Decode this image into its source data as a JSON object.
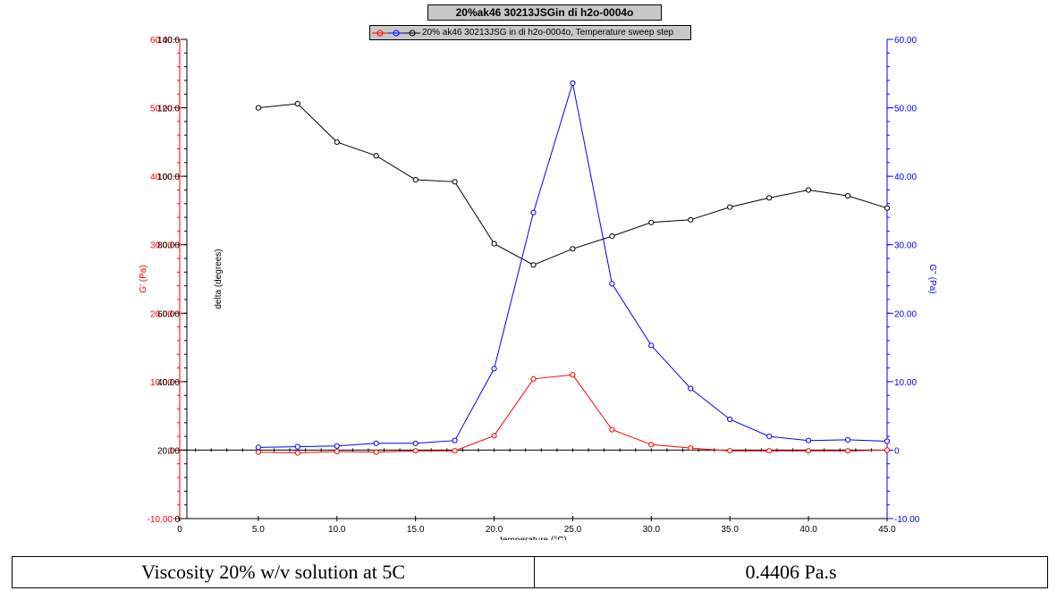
{
  "chart_data": {
    "type": "line",
    "title": "20%ak46 30213JSGin di h2o-0004o",
    "legend": {
      "label": "20% ak46 30213JSG in di h2o-0004o, Temperature sweep step",
      "placement": "top-center"
    },
    "x": [
      5.0,
      7.5,
      10.0,
      12.5,
      15.0,
      17.5,
      20.0,
      22.5,
      25.0,
      27.5,
      30.0,
      32.5,
      35.0,
      37.5,
      40.0,
      42.5,
      45.0
    ],
    "xlabel": "temperature (°C)",
    "xlim": [
      0,
      45
    ],
    "xticks": [
      "0",
      "5.0",
      "10.0",
      "15.0",
      "20.0",
      "25.0",
      "30.0",
      "35.0",
      "40.0",
      "45.0"
    ],
    "series": [
      {
        "name": "G' (Pa)",
        "axis": "left",
        "color": "#ff0000",
        "values": [
          -0.3,
          -0.4,
          -0.2,
          -0.3,
          -0.1,
          -0.1,
          2.1,
          10.4,
          11.0,
          3.0,
          0.8,
          0.3,
          -0.1,
          -0.1,
          -0.1,
          -0.1,
          0.0
        ]
      },
      {
        "name": "delta (degrees)",
        "axis": "delta",
        "color": "#000000",
        "values": [
          120.0,
          121.2,
          110.0,
          106.0,
          99.0,
          98.4,
          80.3,
          74.1,
          78.8,
          82.5,
          86.5,
          87.3,
          91.0,
          93.7,
          96.0,
          94.3,
          90.7
        ]
      },
      {
        "name": "G'' (Pa)",
        "axis": "right",
        "color": "#0000ff",
        "values": [
          0.4,
          0.5,
          0.6,
          1.0,
          1.0,
          1.4,
          11.9,
          34.7,
          53.6,
          24.3,
          15.3,
          9.0,
          4.5,
          2.0,
          1.4,
          1.5,
          1.3
        ]
      }
    ],
    "axes": {
      "left": {
        "label": "G' (Pa)",
        "range": [
          -10,
          60
        ],
        "ticks": [
          "-10.00",
          "0",
          "10.00",
          "20.00",
          "30.00",
          "40.00",
          "50.00",
          "60.00"
        ],
        "color": "#ff0000"
      },
      "delta": {
        "label": "delta (degrees)",
        "range": [
          0,
          140
        ],
        "ticks": [
          "0",
          "20.00",
          "40.00",
          "60.00",
          "80.00",
          "100.0",
          "120.0",
          "140.0"
        ],
        "color": "#000000"
      },
      "right": {
        "label": "G'' (Pa)",
        "range": [
          -10,
          60
        ],
        "ticks": [
          "-10.00",
          "0",
          "10.00",
          "20.00",
          "30.00",
          "40.00",
          "50.00",
          "60.00"
        ],
        "color": "#0000ff"
      }
    },
    "grid": false
  },
  "table": {
    "label": "Viscosity 20% w/v solution at 5C",
    "value": "0.4406 Pa.s"
  }
}
